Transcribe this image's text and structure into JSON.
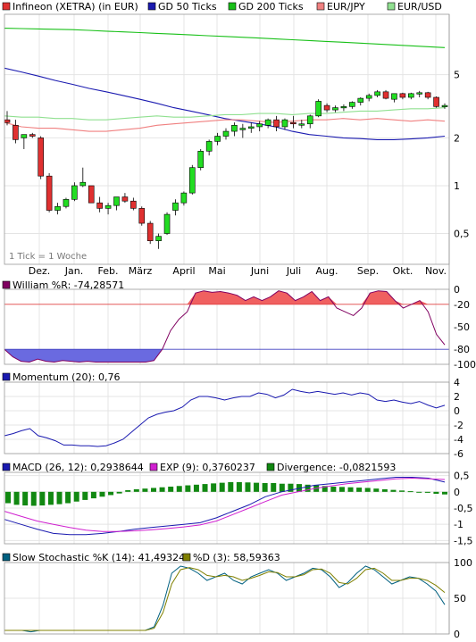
{
  "legend_main": [
    {
      "label": "Infineon (XETRA) (in EUR)",
      "color": "#e03030"
    },
    {
      "label": "GD 50 Ticks",
      "color": "#1a1ab0"
    },
    {
      "label": "GD 200 Ticks",
      "color": "#18c018"
    },
    {
      "label": "EUR/JPY",
      "color": "#f08080"
    },
    {
      "label": "EUR/USD",
      "color": "#90e090"
    }
  ],
  "tick_note": "1 Tick = 1 Woche",
  "months": [
    "Dez.",
    "Jan.",
    "Feb.",
    "März",
    "April",
    "Mai",
    "Juni",
    "Juli",
    "Aug.",
    "Sep.",
    "Okt.",
    "Nov."
  ],
  "panel_legends": {
    "williams": [
      {
        "label": "William %R: -74,28571",
        "color": "#800060"
      }
    ],
    "momentum": [
      {
        "label": "Momentum (20): 0,76",
        "color": "#1a1ab0"
      }
    ],
    "macd": [
      {
        "label": "MACD (26, 12): 0,2938644",
        "color": "#1a1ab0"
      },
      {
        "label": "EXP (9): 0,3760237",
        "color": "#d020d0"
      },
      {
        "label": "Divergence: -0,0821593",
        "color": "#118811"
      }
    ],
    "stoch": [
      {
        "label": "Slow Stochastic %K (14): 41,49324",
        "color": "#006080"
      },
      {
        "label": "%D (3): 58,59363",
        "color": "#808000"
      }
    ]
  },
  "chart_data": [
    {
      "type": "candlestick",
      "title": "Infineon (XETRA) (in EUR)",
      "yscale": "log",
      "yticks": [
        "5",
        "2",
        "1",
        "0,5"
      ],
      "candles_ohlc": [
        [
          2.6,
          2.95,
          2.4,
          2.5
        ],
        [
          2.4,
          2.6,
          1.85,
          1.95
        ],
        [
          2.0,
          2.1,
          1.7,
          2.1
        ],
        [
          2.1,
          2.15,
          2.0,
          2.05
        ],
        [
          2.0,
          2.05,
          1.1,
          1.15
        ],
        [
          1.15,
          1.2,
          0.68,
          0.7
        ],
        [
          0.7,
          0.78,
          0.66,
          0.74
        ],
        [
          0.74,
          0.84,
          0.72,
          0.82
        ],
        [
          0.82,
          1.05,
          0.8,
          1.0
        ],
        [
          1.0,
          1.3,
          0.98,
          1.05
        ],
        [
          1.0,
          1.0,
          0.78,
          0.78
        ],
        [
          0.78,
          0.85,
          0.68,
          0.72
        ],
        [
          0.72,
          0.78,
          0.66,
          0.75
        ],
        [
          0.75,
          0.82,
          0.7,
          0.85
        ],
        [
          0.85,
          0.9,
          0.78,
          0.8
        ],
        [
          0.8,
          0.84,
          0.7,
          0.72
        ],
        [
          0.72,
          0.74,
          0.56,
          0.58
        ],
        [
          0.58,
          0.6,
          0.43,
          0.45
        ],
        [
          0.45,
          0.5,
          0.4,
          0.48
        ],
        [
          0.5,
          0.68,
          0.49,
          0.66
        ],
        [
          0.7,
          0.82,
          0.65,
          0.78
        ],
        [
          0.78,
          0.92,
          0.75,
          0.9
        ],
        [
          0.9,
          1.35,
          0.88,
          1.3
        ],
        [
          1.3,
          1.7,
          1.25,
          1.65
        ],
        [
          1.65,
          1.95,
          1.55,
          1.9
        ],
        [
          1.9,
          2.15,
          1.8,
          2.05
        ],
        [
          2.05,
          2.3,
          1.95,
          2.2
        ],
        [
          2.2,
          2.5,
          2.05,
          2.4
        ],
        [
          2.25,
          2.45,
          2.0,
          2.3
        ],
        [
          2.3,
          2.5,
          2.15,
          2.35
        ],
        [
          2.35,
          2.55,
          2.2,
          2.45
        ],
        [
          2.4,
          2.65,
          2.3,
          2.6
        ],
        [
          2.6,
          2.75,
          2.2,
          2.35
        ],
        [
          2.35,
          2.65,
          2.25,
          2.6
        ],
        [
          2.5,
          2.75,
          2.3,
          2.45
        ],
        [
          2.45,
          2.6,
          2.3,
          2.45
        ],
        [
          2.45,
          2.8,
          2.3,
          2.75
        ],
        [
          2.75,
          3.5,
          2.7,
          3.4
        ],
        [
          3.2,
          3.3,
          2.9,
          3.0
        ],
        [
          3.0,
          3.2,
          2.9,
          3.1
        ],
        [
          3.1,
          3.25,
          2.95,
          3.15
        ],
        [
          3.15,
          3.4,
          3.05,
          3.35
        ],
        [
          3.35,
          3.6,
          3.2,
          3.55
        ],
        [
          3.55,
          3.8,
          3.4,
          3.7
        ],
        [
          3.7,
          4.0,
          3.6,
          3.9
        ],
        [
          3.9,
          4.0,
          3.5,
          3.55
        ],
        [
          3.5,
          3.8,
          3.35,
          3.8
        ],
        [
          3.8,
          3.85,
          3.5,
          3.6
        ],
        [
          3.6,
          3.85,
          3.5,
          3.8
        ],
        [
          3.8,
          3.95,
          3.6,
          3.85
        ],
        [
          3.85,
          3.9,
          3.5,
          3.6
        ],
        [
          3.6,
          3.65,
          3.1,
          3.15
        ],
        [
          3.15,
          3.3,
          3.05,
          3.2
        ]
      ],
      "series": [
        {
          "name": "GD 50 Ticks",
          "values": [
            5.5,
            5.2,
            4.9,
            4.6,
            4.35,
            4.1,
            3.9,
            3.7,
            3.5,
            3.3,
            3.1,
            2.95,
            2.8,
            2.65,
            2.55,
            2.45,
            2.35,
            2.2,
            2.1,
            2.05,
            2.0,
            1.98,
            1.95,
            1.95,
            1.97,
            2.0,
            2.05
          ]
        },
        {
          "name": "GD 200 Ticks",
          "values": [
            9.8,
            9.75,
            9.7,
            9.65,
            9.6,
            9.5,
            9.4,
            9.3,
            9.2,
            9.1,
            9.0,
            8.9,
            8.8,
            8.7,
            8.6,
            8.5,
            8.4,
            8.3,
            8.2,
            8.1,
            8.0,
            7.9,
            7.8,
            7.7,
            7.6,
            7.5,
            7.4
          ]
        },
        {
          "name": "EUR/JPY",
          "values": [
            2.5,
            2.35,
            2.3,
            2.3,
            2.25,
            2.2,
            2.2,
            2.25,
            2.3,
            2.4,
            2.45,
            2.5,
            2.55,
            2.6,
            2.6,
            2.55,
            2.5,
            2.55,
            2.6,
            2.6,
            2.65,
            2.6,
            2.65,
            2.6,
            2.55,
            2.6,
            2.55
          ]
        },
        {
          "name": "EUR/USD",
          "values": [
            2.75,
            2.7,
            2.7,
            2.65,
            2.65,
            2.6,
            2.6,
            2.65,
            2.7,
            2.75,
            2.7,
            2.7,
            2.75,
            2.8,
            2.8,
            2.85,
            2.85,
            2.8,
            2.85,
            2.85,
            2.9,
            2.95,
            2.95,
            3.0,
            3.05,
            3.05,
            3.1
          ]
        }
      ]
    },
    {
      "type": "line",
      "title": "William %R",
      "yticks": [
        "0",
        "-20",
        "-50",
        "-80",
        "-100"
      ],
      "ylim": [
        -100,
        0
      ],
      "reference_lines": [
        -20,
        -80
      ],
      "values": [
        -80,
        -90,
        -96,
        -97,
        -93,
        -96,
        -97,
        -95,
        -96,
        -97,
        -96,
        -97,
        -97,
        -97,
        -97,
        -97,
        -97,
        -97,
        -95,
        -80,
        -55,
        -40,
        -30,
        -5,
        -2,
        -4,
        -3,
        -5,
        -8,
        -15,
        -10,
        -15,
        -10,
        -2,
        -5,
        -15,
        -10,
        -3,
        -15,
        -10,
        -25,
        -30,
        -35,
        -25,
        -5,
        -2,
        -3,
        -15,
        -25,
        -20,
        -15,
        -30,
        -60,
        -74
      ]
    },
    {
      "type": "line",
      "title": "Momentum (20)",
      "yticks": [
        "4",
        "2",
        "0",
        "-2",
        "-4",
        "-6"
      ],
      "ylim": [
        -6,
        4
      ],
      "values": [
        -3.5,
        -3.2,
        -2.8,
        -2.5,
        -3.5,
        -3.8,
        -4.2,
        -4.8,
        -4.8,
        -4.9,
        -4.9,
        -5.0,
        -4.9,
        -4.5,
        -4.0,
        -3.0,
        -2.0,
        -1.0,
        -0.5,
        -0.2,
        0.0,
        0.5,
        1.5,
        2.0,
        2.0,
        1.8,
        1.5,
        1.8,
        2.0,
        2.0,
        2.5,
        2.3,
        1.8,
        2.2,
        3.0,
        2.7,
        2.5,
        2.7,
        2.5,
        2.3,
        2.5,
        2.2,
        2.5,
        2.3,
        1.5,
        1.3,
        1.5,
        1.2,
        1.0,
        1.3,
        0.8,
        0.4,
        0.76
      ]
    },
    {
      "type": "line",
      "title": "MACD (26, 12)",
      "yticks": [
        "0,5",
        "0",
        "-0,5",
        "-1",
        "-1,5"
      ],
      "ylim": [
        -1.6,
        0.6
      ],
      "series": [
        {
          "name": "MACD (26, 12)",
          "values": [
            -0.85,
            -1.0,
            -1.15,
            -1.28,
            -1.32,
            -1.32,
            -1.28,
            -1.22,
            -1.15,
            -1.1,
            -1.05,
            -1.0,
            -0.95,
            -0.8,
            -0.6,
            -0.4,
            -0.15,
            0.0,
            0.1,
            0.2,
            0.25,
            0.3,
            0.35,
            0.4,
            0.45,
            0.45,
            0.42,
            0.3
          ]
        },
        {
          "name": "EXP (9)",
          "values": [
            -0.6,
            -0.75,
            -0.9,
            -1.0,
            -1.1,
            -1.18,
            -1.22,
            -1.22,
            -1.2,
            -1.17,
            -1.13,
            -1.08,
            -1.02,
            -0.9,
            -0.7,
            -0.5,
            -0.3,
            -0.1,
            0.0,
            0.1,
            0.18,
            0.25,
            0.3,
            0.35,
            0.4,
            0.42,
            0.4,
            0.38
          ]
        },
        {
          "name": "Divergence",
          "type": "bar",
          "values": [
            -0.35,
            -0.4,
            -0.42,
            -0.43,
            -0.42,
            -0.4,
            -0.38,
            -0.35,
            -0.3,
            -0.25,
            -0.2,
            -0.15,
            -0.1,
            -0.05,
            0.05,
            0.08,
            0.1,
            0.12,
            0.14,
            0.16,
            0.18,
            0.2,
            0.22,
            0.24,
            0.26,
            0.28,
            0.3,
            0.3,
            0.29,
            0.28,
            0.27,
            0.27,
            0.25,
            0.25,
            0.24,
            0.22,
            0.2,
            0.18,
            0.16,
            0.15,
            0.14,
            0.13,
            0.12,
            0.1,
            0.08,
            0.06,
            0.04,
            0.02,
            0.0,
            -0.03,
            -0.06,
            -0.08
          ]
        }
      ]
    },
    {
      "type": "line",
      "title": "Slow Stochastic %K (14)",
      "yticks": [
        "100",
        "50",
        "0"
      ],
      "ylim": [
        0,
        100
      ],
      "series": [
        {
          "name": "Slow Stochastic %K (14)",
          "values": [
            5,
            5,
            5,
            3,
            5,
            5,
            5,
            5,
            5,
            5,
            5,
            5,
            5,
            5,
            5,
            5,
            5,
            10,
            40,
            85,
            95,
            92,
            85,
            75,
            80,
            85,
            75,
            70,
            80,
            85,
            90,
            85,
            75,
            80,
            85,
            92,
            90,
            80,
            65,
            72,
            85,
            95,
            90,
            80,
            70,
            75,
            80,
            78,
            70,
            60,
            41
          ]
        },
        {
          "name": "%D (3)",
          "values": [
            5,
            5,
            5,
            5,
            5,
            5,
            5,
            5,
            5,
            5,
            5,
            5,
            5,
            5,
            5,
            5,
            5,
            8,
            30,
            70,
            90,
            93,
            90,
            82,
            80,
            82,
            80,
            75,
            78,
            82,
            87,
            86,
            80,
            80,
            83,
            90,
            91,
            85,
            72,
            70,
            78,
            90,
            92,
            85,
            75,
            75,
            78,
            78,
            75,
            68,
            58
          ]
        }
      ]
    }
  ]
}
